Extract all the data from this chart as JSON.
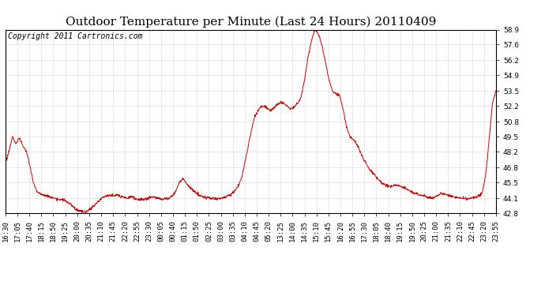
{
  "title": "Outdoor Temperature per Minute (Last 24 Hours) 20110409",
  "copyright_text": "Copyright 2011 Cartronics.com",
  "line_color": "#cc0000",
  "background_color": "#ffffff",
  "grid_color": "#bbbbbb",
  "ylim": [
    42.8,
    58.9
  ],
  "yticks": [
    42.8,
    44.1,
    45.5,
    46.8,
    48.2,
    49.5,
    50.8,
    52.2,
    53.5,
    54.9,
    56.2,
    57.6,
    58.9
  ],
  "x_labels": [
    "16:30",
    "17:05",
    "17:40",
    "18:15",
    "18:50",
    "19:25",
    "20:00",
    "20:35",
    "21:10",
    "21:45",
    "22:20",
    "22:55",
    "23:30",
    "00:05",
    "00:40",
    "01:15",
    "01:50",
    "02:25",
    "03:00",
    "03:35",
    "04:10",
    "04:45",
    "05:20",
    "13:25",
    "14:00",
    "14:35",
    "15:10",
    "15:45",
    "16:20",
    "16:55",
    "17:30",
    "18:05",
    "18:40",
    "19:15",
    "19:50",
    "20:25",
    "21:00",
    "21:35",
    "22:10",
    "22:45",
    "23:20",
    "23:55"
  ],
  "title_fontsize": 11,
  "tick_fontsize": 6.5,
  "copyright_fontsize": 7,
  "figwidth": 6.9,
  "figheight": 3.75,
  "dpi": 100,
  "control_temps": [
    47.2,
    48.2,
    49.5,
    48.9,
    49.4,
    48.7,
    48.2,
    47.0,
    45.5,
    44.7,
    44.5,
    44.4,
    44.3,
    44.2,
    44.1,
    44.0,
    44.0,
    43.9,
    43.7,
    43.5,
    43.2,
    43.0,
    42.92,
    42.9,
    43.1,
    43.3,
    43.6,
    43.9,
    44.2,
    44.3,
    44.35,
    44.3,
    44.4,
    44.3,
    44.2,
    44.1,
    44.3,
    44.1,
    44.0,
    44.0,
    44.0,
    44.1,
    44.2,
    44.15,
    44.1,
    44.0,
    44.05,
    44.1,
    44.3,
    44.8,
    45.5,
    45.8,
    45.4,
    45.1,
    44.8,
    44.5,
    44.3,
    44.2,
    44.15,
    44.1,
    44.1,
    44.05,
    44.1,
    44.2,
    44.3,
    44.5,
    44.8,
    45.2,
    46.0,
    47.5,
    49.0,
    50.5,
    51.5,
    52.0,
    52.2,
    52.1,
    51.8,
    52.0,
    52.3,
    52.5,
    52.4,
    52.2,
    51.9,
    52.1,
    52.4,
    53.0,
    54.5,
    56.5,
    58.0,
    58.9,
    58.5,
    57.5,
    56.0,
    54.5,
    53.5,
    53.3,
    53.2,
    52.0,
    50.5,
    49.5,
    49.3,
    48.8,
    48.2,
    47.5,
    47.0,
    46.5,
    46.2,
    45.8,
    45.5,
    45.3,
    45.2,
    45.1,
    45.3,
    45.2,
    45.1,
    45.0,
    44.8,
    44.6,
    44.5,
    44.4,
    44.3,
    44.2,
    44.15,
    44.1,
    44.3,
    44.5,
    44.5,
    44.4,
    44.3,
    44.2,
    44.15,
    44.1,
    44.1,
    44.05,
    44.1,
    44.2,
    44.3,
    44.5,
    46.0,
    49.0,
    52.5,
    53.5
  ],
  "n_points": 1440
}
